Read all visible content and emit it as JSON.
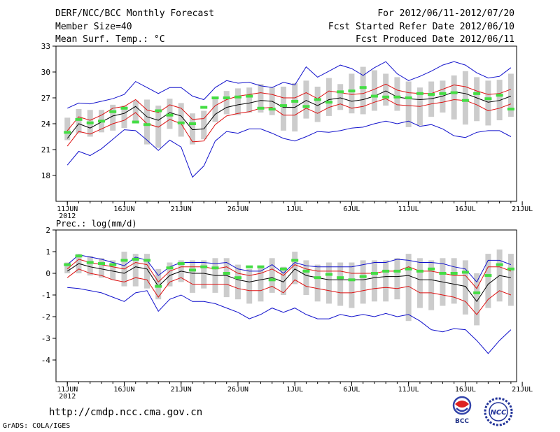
{
  "header": {
    "title": "DERF/NCC/BCC Monthly Forecast",
    "member_size": "Member Size=40",
    "variable": "Mean Surf. Temp.: °C",
    "forecast_period": "For 2012/06/11-2012/07/20",
    "start_refer": "Fcst Started Refer Date 2012/06/10",
    "produced": "Fcst Produced Date 2012/06/11"
  },
  "footer": {
    "url": "http://cmdp.ncc.cma.gov.cn",
    "grads": "GrADS: COLA/IGES",
    "logo_bcc_text": "BCC",
    "logo_ncc_text": "NCC"
  },
  "colors": {
    "ensemble_bar": "#cccccc",
    "member_marker": "#44dd44",
    "mean_line": "#000000",
    "spread_line": "#dd1111",
    "envelope_line": "#1111cc",
    "axis": "#000000"
  },
  "chart_data": [
    {
      "type": "line",
      "title": "Mean Surf. Temp.: °C",
      "x_tick_labels": [
        "11JUN",
        "16JUN",
        "21JUN",
        "26JUN",
        "1JUL",
        "6JUL",
        "11JUL",
        "16JUL",
        "21JUL"
      ],
      "x_year_label": "2012",
      "ylim": [
        15,
        33
      ],
      "yticks": [
        18,
        21,
        24,
        27,
        30,
        33
      ],
      "days": 40,
      "series": [
        {
          "name": "ensemble max",
          "values": [
            25.8,
            26.4,
            26.3,
            26.6,
            26.9,
            27.4,
            28.9,
            28.2,
            27.5,
            28.2,
            28.2,
            27.2,
            26.8,
            28.2,
            29.0,
            28.7,
            28.8,
            28.4,
            28.2,
            28.8,
            28.5,
            30.6,
            29.4,
            30.1,
            30.8,
            30.4,
            29.6,
            30.5,
            31.2,
            29.8,
            29.0,
            29.5,
            30.1,
            30.8,
            31.2,
            30.8,
            29.9,
            29.3,
            29.5,
            30.5
          ]
        },
        {
          "name": "mean plus spread",
          "values": [
            23.2,
            24.8,
            24.4,
            25.0,
            25.8,
            26.0,
            26.8,
            25.6,
            25.3,
            26.2,
            25.8,
            24.5,
            24.6,
            26.1,
            26.8,
            27.2,
            27.4,
            27.6,
            27.4,
            27.0,
            27.0,
            27.6,
            26.9,
            27.8,
            27.6,
            27.4,
            27.5,
            28.0,
            28.6,
            27.9,
            27.6,
            27.5,
            27.5,
            28.0,
            28.5,
            28.3,
            27.8,
            27.4,
            27.5,
            28.0
          ]
        },
        {
          "name": "ensemble mean",
          "values": [
            22.3,
            24.0,
            23.5,
            24.2,
            24.9,
            25.2,
            26.0,
            24.8,
            24.4,
            25.3,
            24.9,
            23.3,
            23.4,
            25.1,
            25.9,
            26.2,
            26.4,
            26.7,
            26.6,
            25.9,
            25.9,
            26.7,
            26.1,
            26.8,
            27.0,
            26.6,
            26.8,
            27.2,
            27.8,
            27.1,
            26.9,
            26.8,
            26.9,
            27.2,
            27.7,
            27.5,
            27.0,
            26.5,
            26.7,
            27.2
          ]
        },
        {
          "name": "mean minus spread",
          "values": [
            21.4,
            23.1,
            22.8,
            23.4,
            24.0,
            24.4,
            25.3,
            24.0,
            23.6,
            24.5,
            24.0,
            21.9,
            22.0,
            23.9,
            24.9,
            25.2,
            25.4,
            25.8,
            25.9,
            25.0,
            25.0,
            25.8,
            25.2,
            25.9,
            26.3,
            25.8,
            26.0,
            26.5,
            26.9,
            26.2,
            26.1,
            26.0,
            26.3,
            26.5,
            26.8,
            26.7,
            26.2,
            25.5,
            25.8,
            26.3
          ]
        },
        {
          "name": "ensemble min",
          "values": [
            19.2,
            20.8,
            20.3,
            21.1,
            22.2,
            23.3,
            23.2,
            22.1,
            20.9,
            22.1,
            21.3,
            17.8,
            19.1,
            22.0,
            23.1,
            22.9,
            23.4,
            23.4,
            22.9,
            22.3,
            22.0,
            22.5,
            23.1,
            23.0,
            23.2,
            23.5,
            23.6,
            24.0,
            24.3,
            24.0,
            24.3,
            23.7,
            23.9,
            23.4,
            22.6,
            22.4,
            23.0,
            23.2,
            23.2,
            22.5
          ]
        },
        {
          "name": "control member",
          "values": [
            23.0,
            24.5,
            24.1,
            24.3,
            25.4,
            25.8,
            24.2,
            23.9,
            25.5,
            25.0,
            24.1,
            24.0,
            25.9,
            27.0,
            27.0,
            27.1,
            27.2,
            25.8,
            25.7,
            26.1,
            26.6,
            26.0,
            26.8,
            26.5,
            27.7,
            27.8,
            28.2,
            27.2,
            27.1,
            27.1,
            27.0,
            27.5,
            27.4,
            27.5,
            27.6,
            26.7,
            27.5,
            26.9,
            27.3,
            25.7
          ]
        },
        {
          "name": "member range low",
          "values": [
            22.1,
            22.9,
            22.5,
            23.0,
            23.2,
            23.5,
            24.2,
            21.6,
            21.2,
            23.4,
            22.5,
            21.6,
            22.2,
            24.2,
            25.1,
            25.0,
            25.3,
            25.3,
            25.0,
            23.2,
            23.1,
            24.6,
            24.2,
            24.9,
            25.6,
            25.2,
            25.1,
            25.5,
            26.1,
            25.5,
            23.6,
            23.8,
            24.8,
            25.3,
            24.5,
            23.9,
            24.3,
            23.8,
            24.4,
            24.8
          ]
        },
        {
          "name": "member range high",
          "values": [
            24.7,
            25.7,
            25.6,
            25.6,
            26.2,
            26.1,
            26.7,
            26.8,
            26.1,
            26.9,
            26.4,
            25.2,
            25.5,
            27.1,
            27.8,
            28.1,
            28.2,
            28.6,
            28.2,
            28.3,
            28.7,
            29.0,
            28.3,
            29.3,
            28.6,
            29.8,
            30.6,
            30.2,
            29.8,
            29.4,
            28.9,
            28.2,
            28.9,
            29.0,
            29.6,
            30.1,
            29.4,
            29.0,
            29.1,
            29.8
          ]
        }
      ]
    },
    {
      "type": "line",
      "title": "Prec.: log(mm/d)",
      "x_tick_labels": [
        "11JUN",
        "16JUN",
        "21JUN",
        "26JUN",
        "1JUL",
        "6JUL",
        "11JUL",
        "16JUL",
        "21JUL"
      ],
      "x_year_label": "2012",
      "ylim": [
        -5,
        2
      ],
      "yticks": [
        -4,
        -3,
        -2,
        -1,
        0,
        1,
        2
      ],
      "days": 40,
      "series": [
        {
          "name": "ensemble max",
          "values": [
            0.4,
            0.85,
            0.75,
            0.65,
            0.5,
            0.35,
            0.75,
            0.6,
            -0.1,
            0.3,
            0.5,
            0.5,
            0.5,
            0.45,
            0.5,
            0.2,
            0.1,
            0.1,
            0.4,
            0.0,
            0.5,
            0.35,
            0.3,
            0.3,
            0.3,
            0.3,
            0.4,
            0.5,
            0.5,
            0.65,
            0.6,
            0.5,
            0.5,
            0.45,
            0.3,
            0.2,
            -0.4,
            0.6,
            0.6,
            0.4
          ]
        },
        {
          "name": "mean plus spread",
          "values": [
            0.2,
            0.65,
            0.5,
            0.4,
            0.3,
            0.2,
            0.5,
            0.4,
            -0.4,
            0.1,
            0.3,
            0.3,
            0.3,
            0.2,
            0.3,
            0.0,
            -0.1,
            0.0,
            0.2,
            -0.1,
            0.4,
            0.2,
            0.1,
            0.1,
            0.1,
            0.0,
            0.0,
            0.0,
            0.1,
            0.1,
            0.3,
            0.1,
            0.1,
            0.0,
            -0.1,
            -0.1,
            -0.7,
            0.3,
            0.3,
            0.1
          ]
        },
        {
          "name": "ensemble mean",
          "values": [
            0.1,
            0.45,
            0.3,
            0.2,
            0.1,
            0.0,
            0.3,
            0.2,
            -0.6,
            -0.1,
            0.1,
            0.0,
            0.0,
            -0.1,
            -0.1,
            -0.3,
            -0.4,
            -0.3,
            -0.2,
            -0.4,
            0.2,
            -0.1,
            -0.2,
            -0.3,
            -0.3,
            -0.3,
            -0.3,
            -0.2,
            -0.15,
            -0.15,
            -0.1,
            -0.3,
            -0.3,
            -0.4,
            -0.5,
            -0.6,
            -1.3,
            -0.5,
            -0.1,
            -0.2
          ]
        },
        {
          "name": "mean minus spread",
          "values": [
            -0.2,
            0.2,
            0.0,
            -0.1,
            -0.3,
            -0.4,
            -0.2,
            -0.3,
            -1.1,
            -0.4,
            -0.2,
            -0.5,
            -0.5,
            -0.5,
            -0.5,
            -0.7,
            -0.8,
            -0.8,
            -0.6,
            -0.9,
            -0.3,
            -0.6,
            -0.7,
            -0.8,
            -0.9,
            -0.9,
            -0.8,
            -0.7,
            -0.65,
            -0.7,
            -0.6,
            -0.9,
            -0.9,
            -1.0,
            -1.1,
            -1.3,
            -1.9,
            -1.2,
            -0.8,
            -1.0
          ]
        },
        {
          "name": "ensemble min",
          "values": [
            -0.65,
            -0.7,
            -0.8,
            -0.9,
            -1.1,
            -1.3,
            -0.9,
            -0.8,
            -1.75,
            -1.2,
            -1.0,
            -1.3,
            -1.3,
            -1.4,
            -1.6,
            -1.8,
            -2.1,
            -1.9,
            -1.6,
            -1.8,
            -1.6,
            -1.9,
            -2.1,
            -2.1,
            -1.9,
            -2.0,
            -1.9,
            -2.0,
            -1.85,
            -2.0,
            -1.9,
            -2.2,
            -2.6,
            -2.7,
            -2.55,
            -2.6,
            -3.1,
            -3.7,
            -3.1,
            -2.6
          ]
        },
        {
          "name": "control member",
          "values": [
            0.4,
            0.8,
            0.5,
            0.45,
            0.4,
            0.6,
            0.65,
            0.6,
            -0.6,
            0.25,
            0.45,
            0.15,
            0.3,
            0.25,
            0.0,
            -0.2,
            0.3,
            0.3,
            -0.3,
            0.2,
            0.6,
            0.1,
            -0.2,
            -0.05,
            -0.2,
            -0.3,
            -0.15,
            0.0,
            0.1,
            0.1,
            0.2,
            0.1,
            0.2,
            0.0,
            0.0,
            0.05,
            -0.9,
            -0.1,
            0.4,
            0.2
          ]
        },
        {
          "name": "member range low",
          "values": [
            0.0,
            0.0,
            -0.1,
            -0.2,
            -0.3,
            -0.6,
            -0.6,
            -0.7,
            -1.2,
            -0.6,
            -0.4,
            -0.9,
            -0.7,
            -0.9,
            -1.1,
            -1.2,
            -1.4,
            -1.3,
            -0.9,
            -1.0,
            -0.5,
            -1.0,
            -1.3,
            -1.4,
            -1.5,
            -1.6,
            -1.4,
            -1.3,
            -1.3,
            -1.2,
            -2.2,
            -1.6,
            -1.7,
            -1.5,
            -1.4,
            -1.9,
            -2.4,
            -1.6,
            -1.3,
            -1.5
          ]
        },
        {
          "name": "member range high",
          "values": [
            0.5,
            0.9,
            0.8,
            0.7,
            0.6,
            1.0,
            0.9,
            0.9,
            0.2,
            0.5,
            0.6,
            0.6,
            0.6,
            0.7,
            0.7,
            0.4,
            0.2,
            0.3,
            0.7,
            0.3,
            1.0,
            0.6,
            0.4,
            0.5,
            0.5,
            0.5,
            0.6,
            0.6,
            0.6,
            0.7,
            0.9,
            0.7,
            0.6,
            0.7,
            0.7,
            0.6,
            0.0,
            0.9,
            1.1,
            0.9
          ]
        }
      ]
    }
  ]
}
